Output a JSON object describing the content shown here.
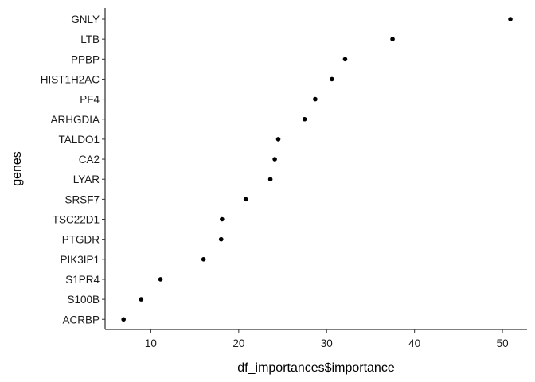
{
  "chart_data": {
    "type": "scatter",
    "xlabel": "df_importances$importance",
    "ylabel": "genes",
    "xlim": [
      4.8,
      52.8
    ],
    "xticks": [
      10,
      20,
      30,
      40,
      50
    ],
    "grid": false,
    "legend": "none",
    "point_color": "#000000",
    "categories": [
      "GNLY",
      "LTB",
      "PPBP",
      "HIST1H2AC",
      "PF4",
      "ARHGDIA",
      "TALDO1",
      "CA2",
      "LYAR",
      "SRSF7",
      "TSC22D1",
      "PTGDR",
      "PIK3IP1",
      "S1PR4",
      "S100B",
      "ACRBP"
    ],
    "values": [
      50.9,
      37.5,
      32.1,
      30.6,
      28.7,
      27.5,
      24.5,
      24.1,
      23.6,
      20.8,
      18.1,
      18.0,
      16.0,
      11.1,
      8.9,
      6.9
    ]
  }
}
